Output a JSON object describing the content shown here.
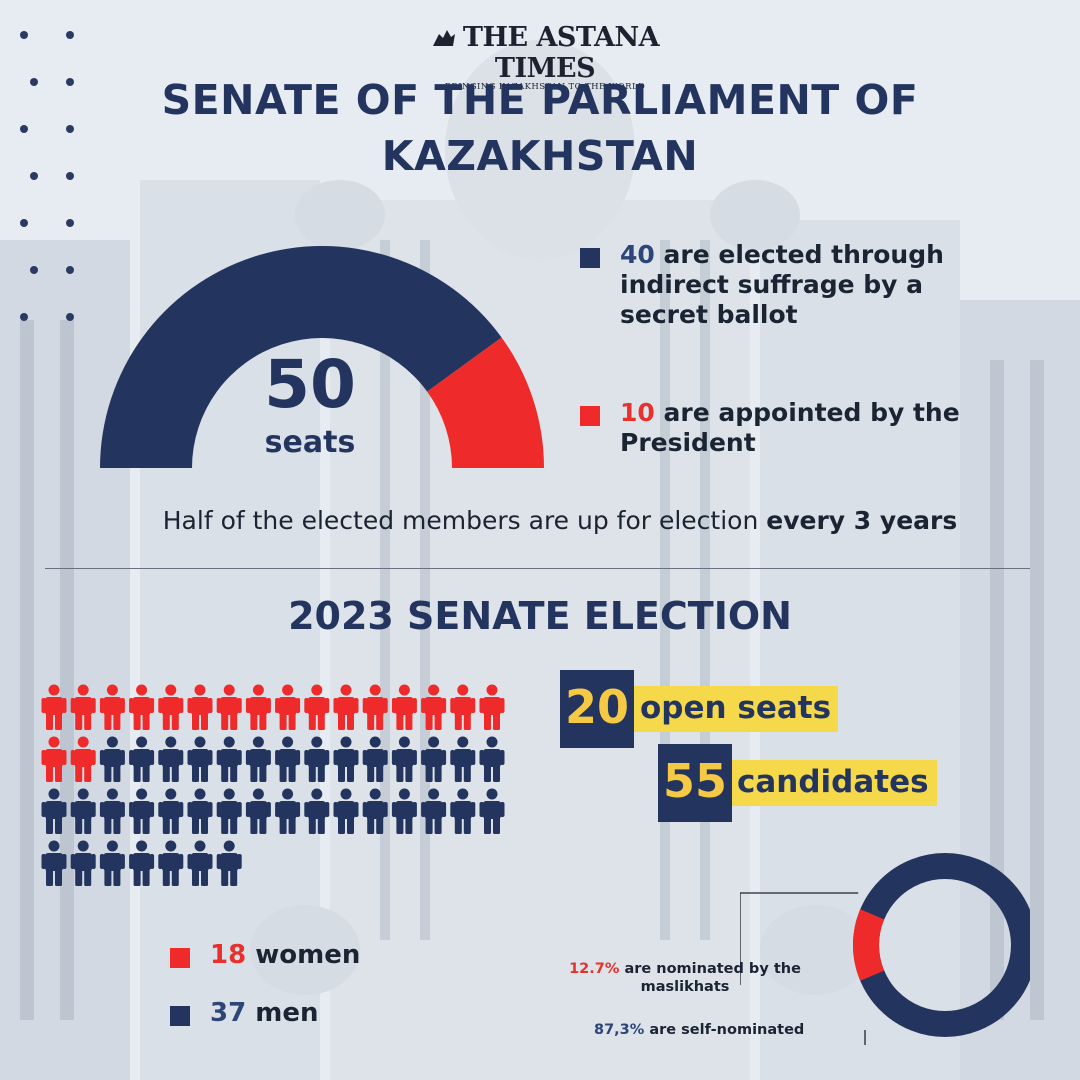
{
  "header": {
    "logo_title": "THE ASTANA TIMES",
    "logo_subtitle": "BRINGING KAZAKHSTAN TO THE WORLD"
  },
  "title": {
    "line1": "SENATE OF THE PARLIAMENT OF",
    "line2": "KAZAKHSTAN"
  },
  "senate": {
    "total_seats": "50",
    "seats_label": "seats",
    "elected": {
      "number": "40",
      "text_line1": " are elected through",
      "text_line2": "indirect suffrage by a",
      "text_line3": "secret ballot",
      "value": 40,
      "color": "#23355f"
    },
    "appointed": {
      "number": "10",
      "text_line1": " are appointed by the",
      "text_line2": "President",
      "value": 10,
      "color": "#ef2a2a"
    },
    "term_text": "Half of the elected members are up for election ",
    "term_bold": "every 3 years"
  },
  "election": {
    "title": "2023 SENATE ELECTION",
    "open_seats": {
      "number": "20",
      "label": "open seats"
    },
    "candidates": {
      "number": "55",
      "label": "candidates"
    },
    "women": {
      "number": "18",
      "label": " women",
      "count": 18,
      "color": "#ef2a2a"
    },
    "men": {
      "number": "37",
      "label": " men",
      "count": 37,
      "color": "#23355f"
    },
    "maslikhats": {
      "percent": "12.7%",
      "text_line1": " are nominated by the",
      "text_line2": "maslikhats",
      "value": 12.7
    },
    "self": {
      "percent": "87,3%",
      "text": " are self-nominated",
      "value": 87.3
    }
  },
  "colors": {
    "navy": "#23355f",
    "red": "#ef2a2a",
    "yellow": "#f6d94a"
  },
  "icons": [
    "person-icon",
    "square-bullet-icon",
    "logo-mark-icon"
  ]
}
